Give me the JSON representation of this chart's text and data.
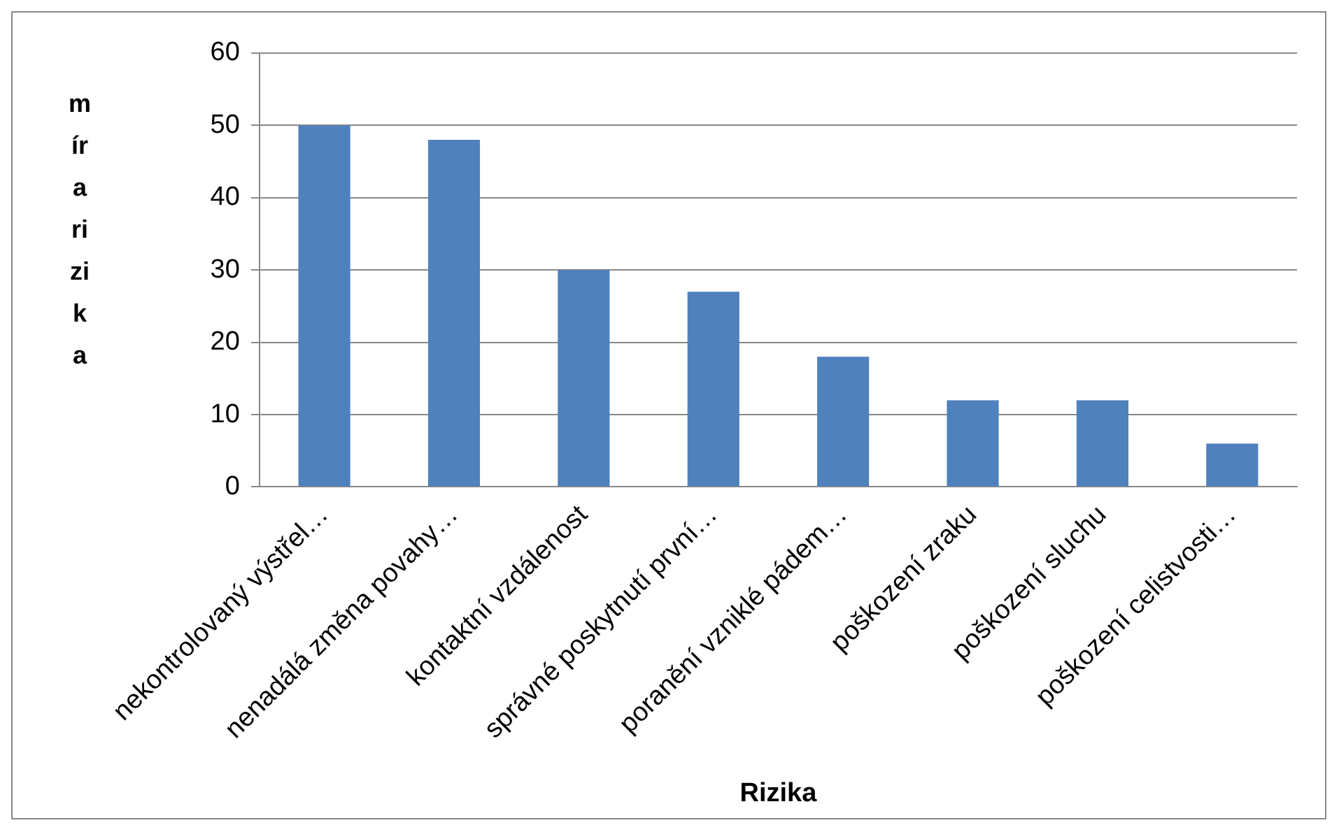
{
  "chart_data": {
    "type": "bar",
    "xlabel": "Rizika",
    "ylabel": "míra rizika",
    "categories": [
      "nekontrolovaný výstřel…",
      "nenadálá změna povahy…",
      "kontaktní vzdálenost",
      "správné poskytnutí první…",
      "poranění vzniklé pádem…",
      "poškození zraku",
      "poškození sluchu",
      "poškození celistvosti…"
    ],
    "values": [
      50,
      48,
      30,
      27,
      18,
      12,
      12,
      6
    ],
    "color": "#4f81bd",
    "ylim": [
      0,
      60
    ],
    "yticks": [
      0,
      10,
      20,
      30,
      40,
      50,
      60
    ],
    "grid": "y",
    "legend": false
  }
}
